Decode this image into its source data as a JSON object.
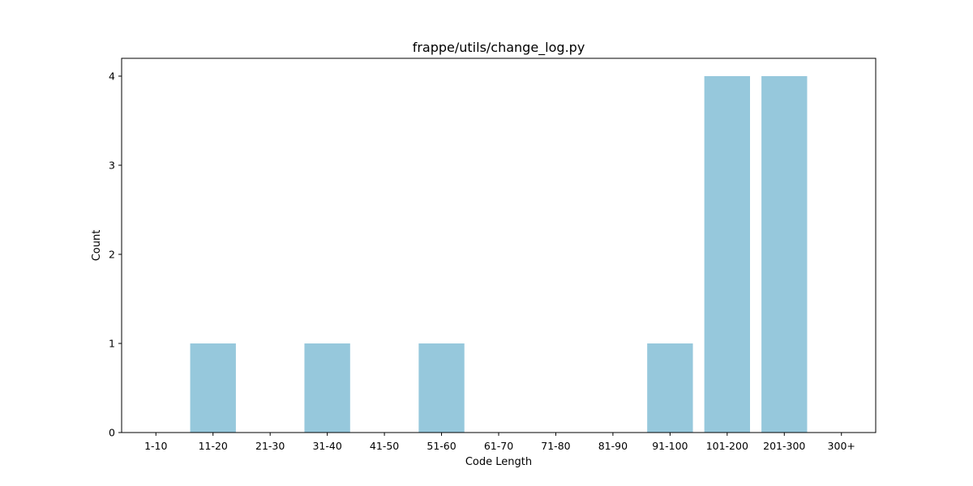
{
  "chart_data": {
    "type": "bar",
    "title": "frappe/utils/change_log.py",
    "xlabel": "Code Length",
    "ylabel": "Count",
    "categories": [
      "1-10",
      "11-20",
      "21-30",
      "31-40",
      "41-50",
      "51-60",
      "61-70",
      "71-80",
      "81-90",
      "91-100",
      "101-200",
      "201-300",
      "300+"
    ],
    "values": [
      0,
      1,
      0,
      1,
      0,
      1,
      0,
      0,
      0,
      1,
      4,
      4,
      0
    ],
    "ylim": [
      0,
      4.2
    ],
    "yticks": [
      0,
      1,
      2,
      3,
      4
    ],
    "bar_color": "#96c8dc",
    "grid": false,
    "legend": "none"
  }
}
